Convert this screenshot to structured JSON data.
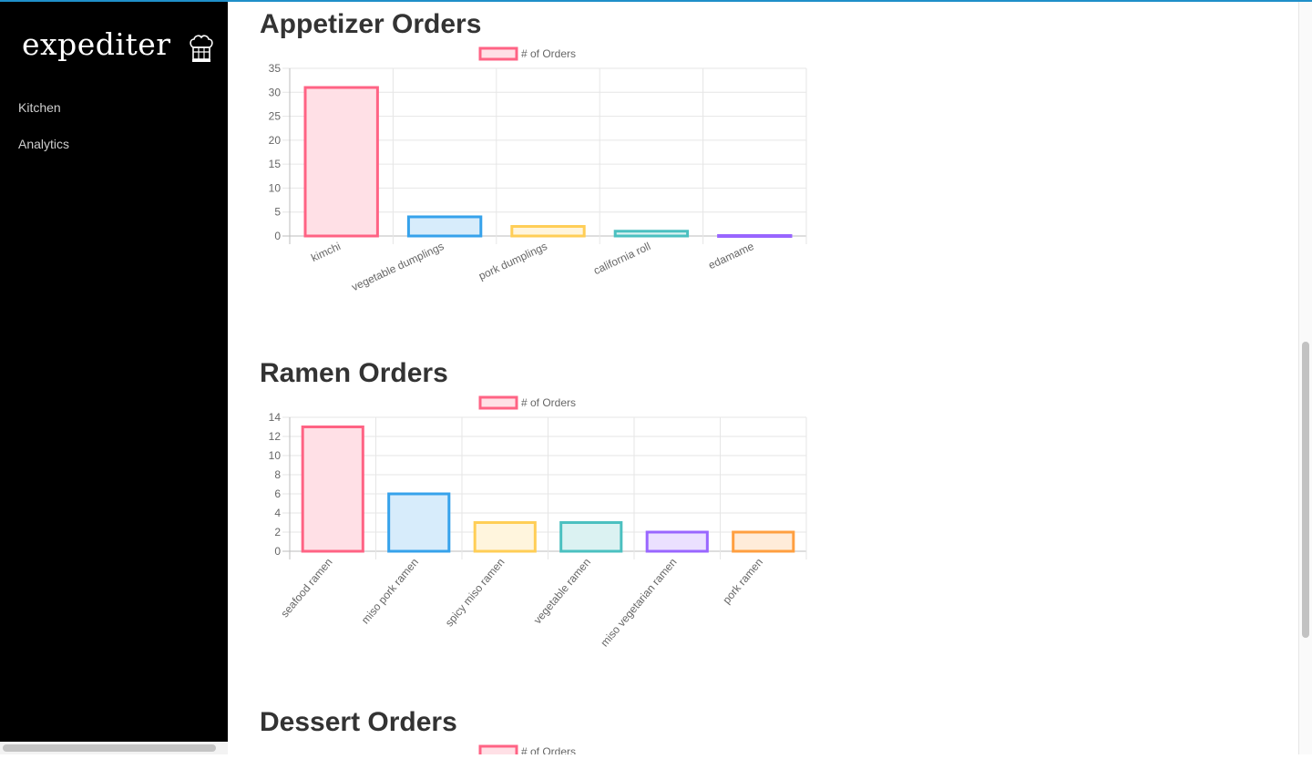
{
  "sidebar": {
    "logo_text": "expediter",
    "logo_icon": "chef-hat-icon",
    "items": [
      {
        "label": "Kitchen"
      },
      {
        "label": "Analytics"
      }
    ]
  },
  "sections": [
    {
      "title": "Appetizer Orders"
    },
    {
      "title": "Ramen Orders"
    },
    {
      "title": "Dessert Orders"
    }
  ],
  "chart_data": [
    {
      "type": "bar",
      "title": "Appetizer Orders",
      "legend": {
        "label": "# of Orders",
        "position": "top"
      },
      "categories": [
        "kimchi",
        "vegetable dumplings",
        "pork dumplings",
        "california roll",
        "edamame"
      ],
      "series": [
        {
          "name": "# of Orders",
          "values": [
            31,
            4,
            2,
            1,
            0
          ]
        }
      ],
      "ylim": [
        0,
        35
      ],
      "yticks": [
        0,
        5,
        10,
        15,
        20,
        25,
        30,
        35
      ],
      "grid": true,
      "colors": {
        "border": [
          "#ff6384",
          "#36a2eb",
          "#ffce56",
          "#4bc0c0",
          "#9966ff"
        ],
        "fill": [
          "#ffe0e6",
          "#d7ecfb",
          "#fff5dd",
          "#dbf2f2",
          "#ebe0ff"
        ]
      }
    },
    {
      "type": "bar",
      "title": "Ramen Orders",
      "legend": {
        "label": "# of Orders",
        "position": "top"
      },
      "categories": [
        "seafood ramen",
        "miso pork ramen",
        "spicy miso ramen",
        "vegetable ramen",
        "miso vegetarian ramen",
        "pork ramen"
      ],
      "series": [
        {
          "name": "# of Orders",
          "values": [
            13,
            6,
            3,
            3,
            2,
            2
          ]
        }
      ],
      "ylim": [
        0,
        14
      ],
      "yticks": [
        0,
        2,
        4,
        6,
        8,
        10,
        12,
        14
      ],
      "grid": true,
      "colors": {
        "border": [
          "#ff6384",
          "#36a2eb",
          "#ffce56",
          "#4bc0c0",
          "#9966ff",
          "#ff9f40"
        ],
        "fill": [
          "#ffe0e6",
          "#d7ecfb",
          "#fff5dd",
          "#dbf2f2",
          "#ebe0ff",
          "#ffecd9"
        ]
      }
    },
    {
      "type": "bar",
      "title": "Dessert Orders",
      "legend": {
        "label": "# of Orders",
        "position": "top"
      },
      "categories": [],
      "series": [
        {
          "name": "# of Orders",
          "values": []
        }
      ],
      "colors": {
        "border": [
          "#ff6384"
        ],
        "fill": [
          "#ffe0e6"
        ]
      }
    }
  ]
}
